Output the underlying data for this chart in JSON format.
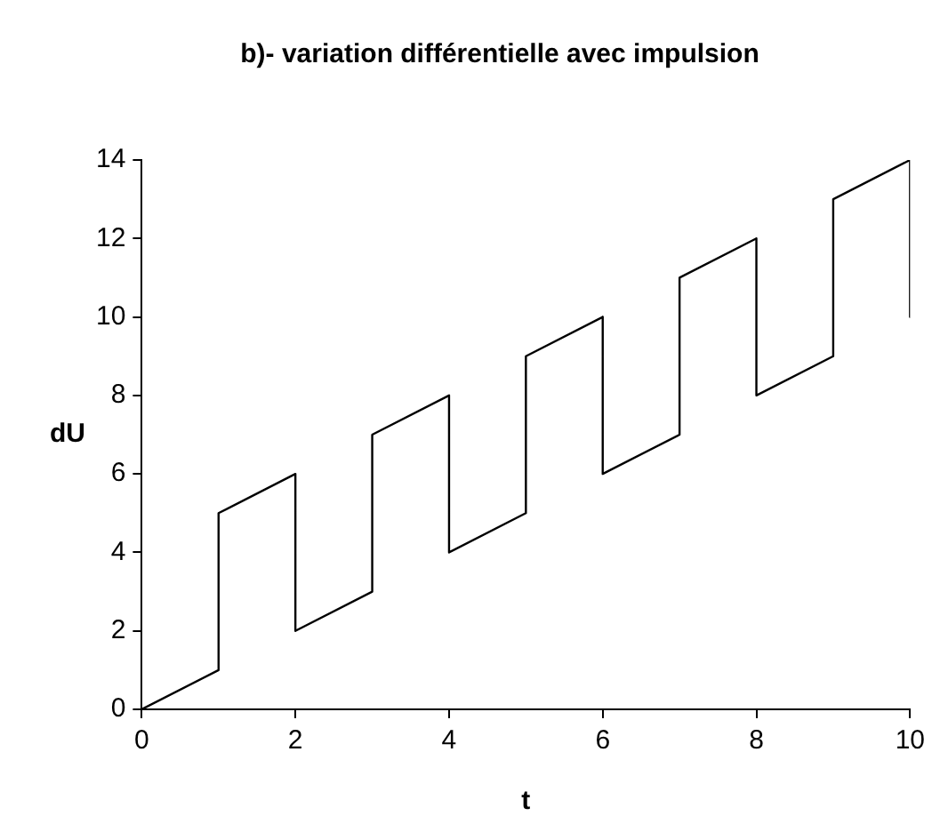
{
  "chart_data": {
    "type": "line",
    "title": "b)- variation différentielle avec impulsion",
    "xlabel": "t",
    "ylabel": "dU",
    "x": [
      0,
      1,
      1,
      2,
      2,
      3,
      3,
      4,
      4,
      5,
      5,
      6,
      6,
      7,
      7,
      8,
      8,
      9,
      9,
      10,
      10
    ],
    "series": [
      {
        "color": "#000000",
        "values": [
          0,
          1,
          5,
          6,
          2,
          3,
          7,
          8,
          4,
          5,
          9,
          10,
          6,
          7,
          11,
          12,
          8,
          9,
          13,
          14,
          10
        ]
      }
    ],
    "xlim": [
      0,
      10
    ],
    "xticks": [
      0,
      2,
      4,
      6,
      8,
      10
    ],
    "ylim": [
      0,
      14
    ],
    "yticks": [
      0,
      2,
      4,
      6,
      8,
      10,
      12,
      14
    ],
    "grid": false,
    "legend": false,
    "marker": "none",
    "line_style": "solid"
  }
}
